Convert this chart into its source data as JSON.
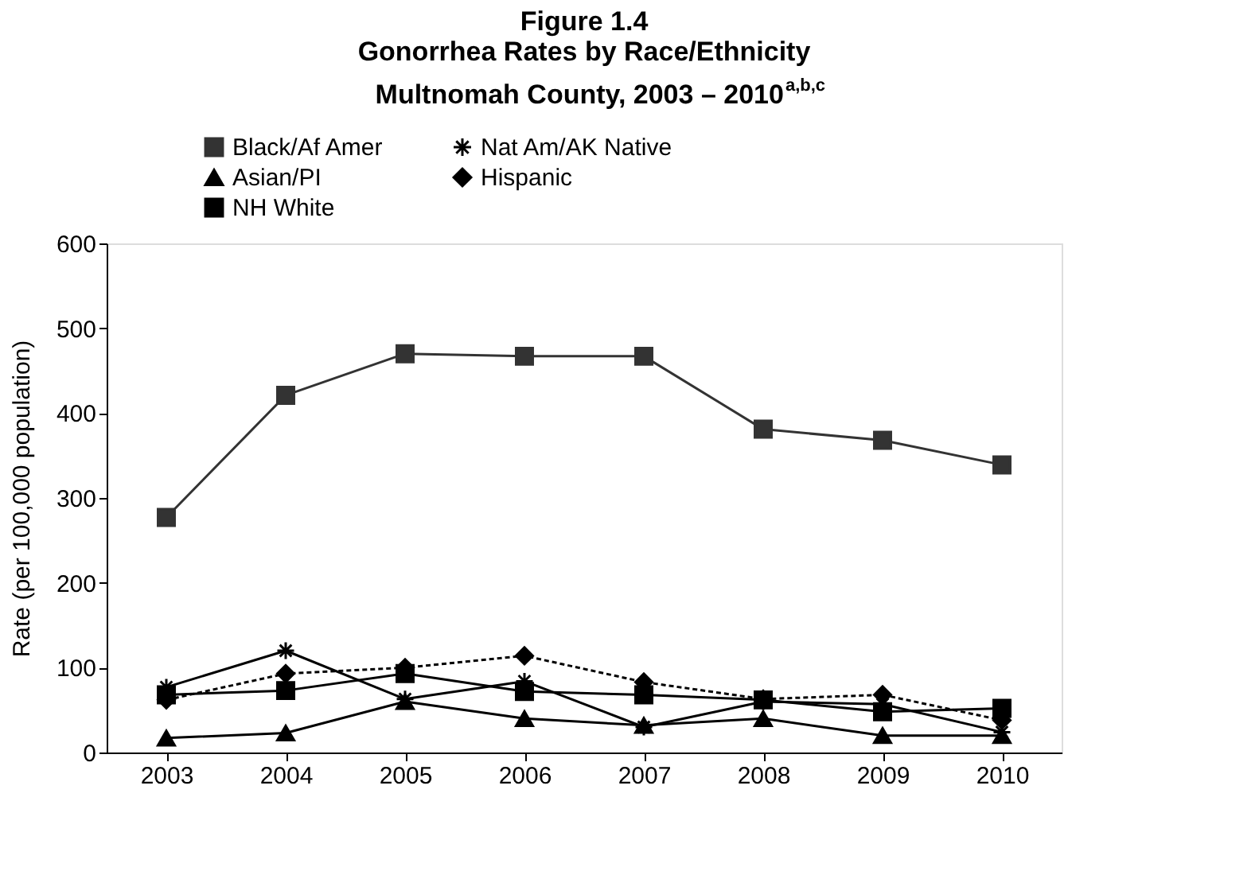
{
  "chart_data": {
    "type": "line",
    "title": [
      "Figure 1.4",
      "Gonorrhea Rates by Race/Ethnicity",
      "Multnomah County, 2003 – 2010$^{a,b,c}$"
    ],
    "ylabel": "Rate (per 100,000 population)",
    "categories": [
      "2003",
      "2004",
      "2005",
      "2006",
      "2007",
      "2008",
      "2009",
      "2010"
    ],
    "series": [
      {
        "name": "Black/Af Amer",
        "color": "#333333",
        "marker": "square",
        "line_style": "solid",
        "values": [
          277,
          421,
          470,
          467,
          467,
          381,
          368,
          339
        ]
      },
      {
        "name": "Asian/PI",
        "color": "#000000",
        "marker": "triangle",
        "line_style": "solid",
        "values": [
          17,
          23,
          60,
          40,
          32,
          40,
          20,
          20
        ]
      },
      {
        "name": "NH White",
        "color": "#000000",
        "marker": "square",
        "line_style": "solid",
        "values": [
          68,
          73,
          93,
          72,
          68,
          62,
          48,
          52
        ]
      },
      {
        "name": "Nat Am/AK Native",
        "color": "#000000",
        "marker": "cross",
        "line_style": "solid",
        "values": [
          77,
          120,
          63,
          84,
          30,
          60,
          57,
          24
        ]
      },
      {
        "name": "Hispanic",
        "color": "#000000",
        "marker": "diamond",
        "line_style": "dotted",
        "values": [
          62,
          93,
          100,
          114,
          83,
          63,
          68,
          38
        ]
      }
    ],
    "ylim": [
      0,
      600
    ],
    "yticks": [
      0,
      100,
      200,
      300,
      400,
      500,
      600
    ],
    "grid": false,
    "legend": "top"
  }
}
